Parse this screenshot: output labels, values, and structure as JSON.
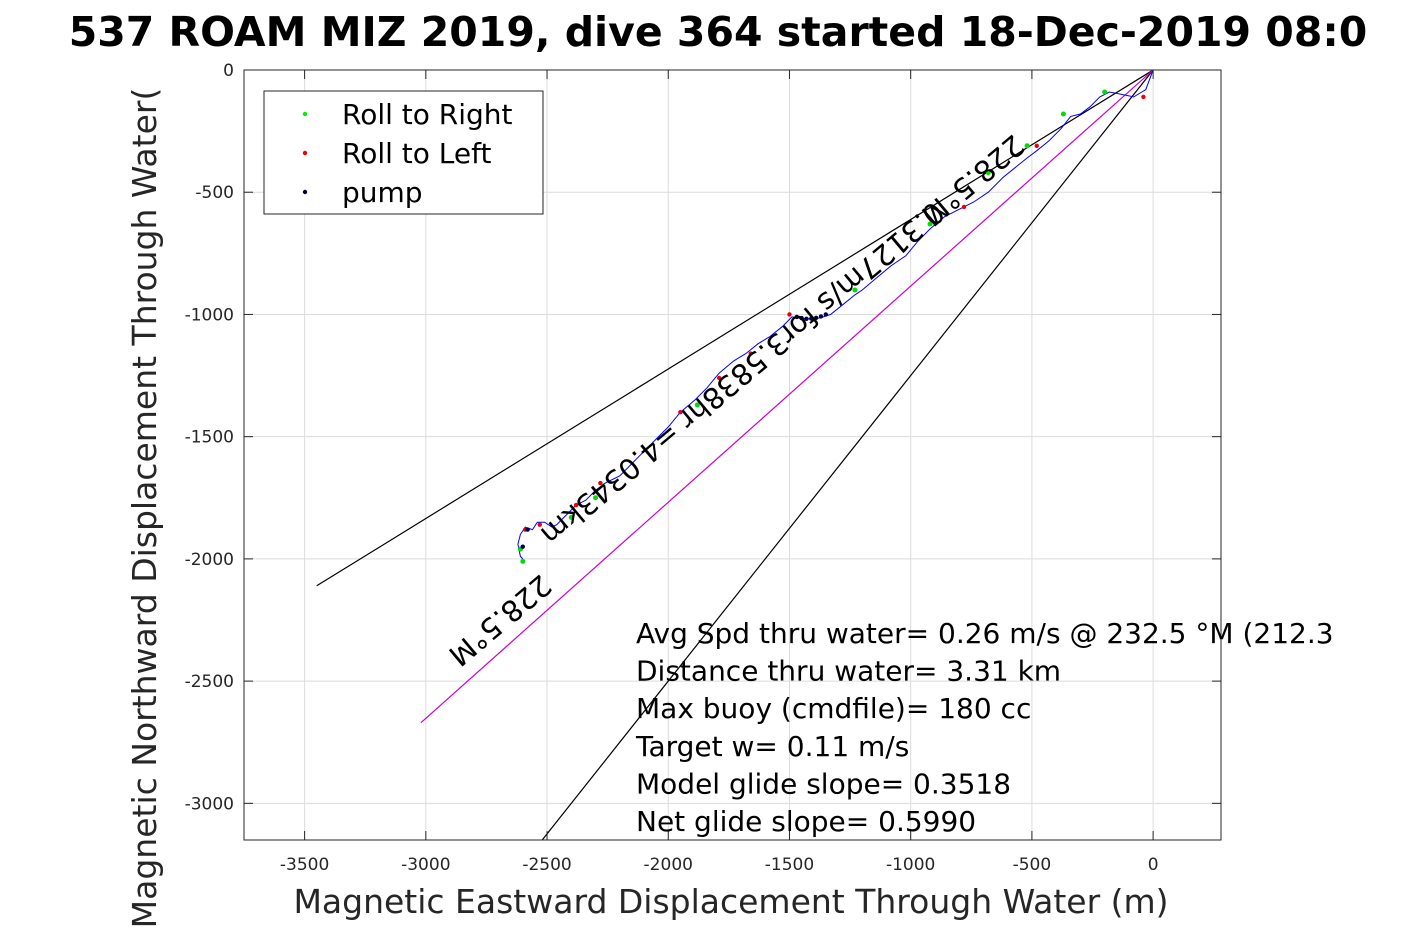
{
  "title": "537 ROAM MIZ 2019, dive 364 started 18-Dec-2019 08:0",
  "chart_data": {
    "type": "line",
    "xlabel": "Magnetic Eastward Displacement Through Water (m)",
    "ylabel": "Magnetic Northward Displacement Through Water(",
    "xlim": [
      -3750,
      280
    ],
    "ylim": [
      -3150,
      0
    ],
    "xticks": [
      -3500,
      -3000,
      -2500,
      -2000,
      -1500,
      -1000,
      -500,
      0
    ],
    "yticks": [
      0,
      -500,
      -1000,
      -1500,
      -2000,
      -2500,
      -3000
    ],
    "xtick_labels": [
      "-3500",
      "-3000",
      "-2500",
      "-2000",
      "-1500",
      "-1000",
      "-500",
      "0"
    ],
    "ytick_labels": [
      "0",
      "-500",
      "-1000",
      "-1500",
      "-2000",
      "-2500",
      "-3000"
    ],
    "grid": true,
    "legend_position": "top-left",
    "legend": [
      {
        "label": "Roll to Right",
        "color": "#00ee00"
      },
      {
        "label": "Roll to Left",
        "color": "#ee0000"
      },
      {
        "label": "pump",
        "color": "#000040"
      }
    ],
    "track": {
      "name": "",
      "color": "#0000ff",
      "x": [
        0,
        -30,
        -80,
        -130,
        -180,
        -220,
        -260,
        -300,
        -340,
        -380,
        -430,
        -480,
        -520,
        -570,
        -620,
        -680,
        -740,
        -800,
        -860,
        -920,
        -970,
        -1020,
        -1080,
        -1140,
        -1200,
        -1230,
        -1280,
        -1330,
        -1360,
        -1400,
        -1450,
        -1490,
        -1530,
        -1580,
        -1630,
        -1680,
        -1730,
        -1790,
        -1840,
        -1890,
        -1950,
        -2000,
        -2050,
        -2100,
        -2150,
        -2200,
        -2260,
        -2300,
        -2340,
        -2380,
        -2420,
        -2460,
        -2480,
        -2510,
        -2540,
        -2560,
        -2590,
        -2610,
        -2620,
        -2610,
        -2600
      ],
      "y": [
        0,
        -80,
        -110,
        -100,
        -90,
        -110,
        -150,
        -180,
        -190,
        -240,
        -290,
        -330,
        -360,
        -400,
        -440,
        -500,
        -540,
        -570,
        -600,
        -650,
        -700,
        -760,
        -800,
        -850,
        -900,
        -920,
        -960,
        -1000,
        -1010,
        -1020,
        -1015,
        -1010,
        -1050,
        -1090,
        -1120,
        -1160,
        -1190,
        -1240,
        -1300,
        -1350,
        -1400,
        -1460,
        -1510,
        -1560,
        -1610,
        -1660,
        -1690,
        -1720,
        -1760,
        -1780,
        -1820,
        -1860,
        -1870,
        -1850,
        -1850,
        -1880,
        -1870,
        -1900,
        -1940,
        -1990,
        -2000
      ]
    },
    "roll_right_points": {
      "x": [
        -200,
        -370,
        -520,
        -680,
        -920,
        -1230,
        -1880,
        -2300,
        -2400,
        -2610,
        -2600
      ],
      "y": [
        -90,
        -180,
        -310,
        -420,
        -630,
        -900,
        -1370,
        -1750,
        -1830,
        -1960,
        -2010
      ]
    },
    "roll_left_points": {
      "x": [
        -40,
        -480,
        -780,
        -1500,
        -1660,
        -1790,
        -1950,
        -2280,
        -2380,
        -2530,
        -2590
      ],
      "y": [
        -110,
        -310,
        -560,
        -1000,
        -1160,
        -1260,
        -1400,
        -1690,
        -1780,
        -1860,
        -1880
      ]
    },
    "pump_points": {
      "x": [
        -1350,
        -1370,
        -1390,
        -1410,
        -1430,
        -1450,
        -1470,
        -2580,
        -2600
      ],
      "y": [
        -1000,
        -1008,
        -1014,
        -1017,
        -1018,
        -1015,
        -1010,
        -1880,
        -1950
      ]
    },
    "lines": [
      {
        "name": "",
        "color": "#000000",
        "x": [
          0,
          -3450
        ],
        "y": [
          0,
          -2110
        ]
      },
      {
        "name": "",
        "color": "#000000",
        "x": [
          0,
          -2520
        ],
        "y": [
          0,
          -3150
        ]
      },
      {
        "name": "",
        "color": "#cc00cc",
        "x": [
          0,
          -3020
        ],
        "y": [
          0,
          -2670
        ]
      }
    ],
    "rotated_labels": [
      {
        "text": "228.5°M",
        "x": -770,
        "y": -420,
        "angle": 140
      },
      {
        "text": "0.3127m/s for3.5838hr =4.0343km",
        "x": -1720,
        "y": -1210,
        "angle": 140
      },
      {
        "text": "228.5°M",
        "x": -2720,
        "y": -2220,
        "angle": 140
      }
    ],
    "annotations": [
      "Avg Spd thru water=  0.26 m/s @ 232.5 °M (212.3",
      "Distance thru water=  3.31 km",
      "Max buoy (cmdfile)= 180 cc",
      "Target w= 0.11 m/s",
      "Model glide slope= 0.3518",
      "Net glide slope= 0.5990"
    ]
  }
}
